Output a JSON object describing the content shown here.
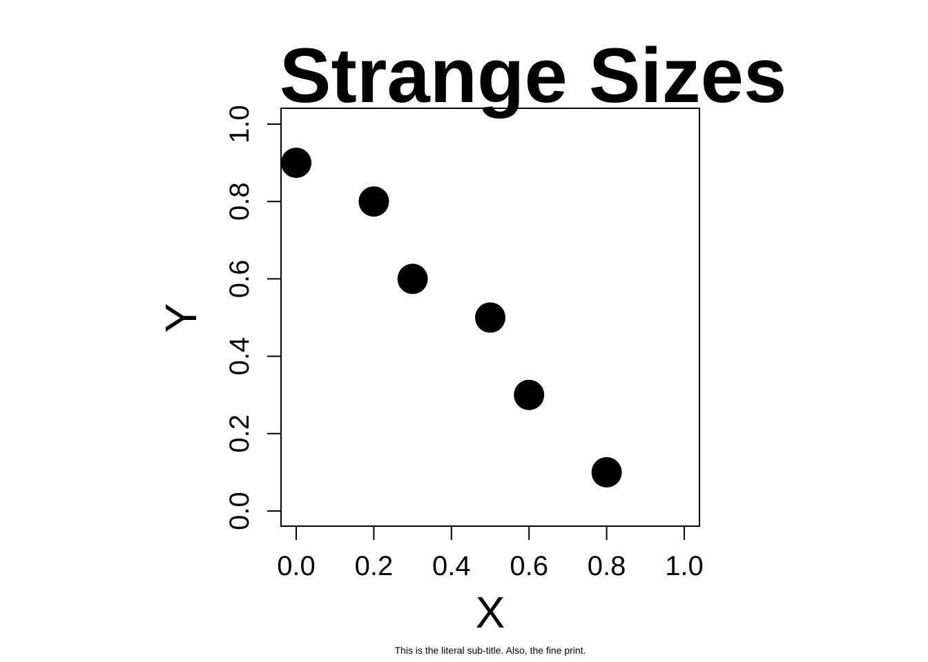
{
  "chart_data": {
    "type": "scatter",
    "title": "Strange Sizes",
    "subtitle": "This is the literal sub-title. Also, the fine print.",
    "xlabel": "X",
    "ylabel": "Y",
    "xlim": [
      0,
      1
    ],
    "ylim": [
      0,
      1
    ],
    "x_ticks": [
      "0.0",
      "0.2",
      "0.4",
      "0.6",
      "0.8",
      "1.0"
    ],
    "y_ticks": [
      "0.0",
      "0.2",
      "0.4",
      "0.6",
      "0.8",
      "1.0"
    ],
    "points": [
      {
        "x": 0.0,
        "y": 0.9
      },
      {
        "x": 0.2,
        "y": 0.8
      },
      {
        "x": 0.3,
        "y": 0.6
      },
      {
        "x": 0.5,
        "y": 0.5
      },
      {
        "x": 0.6,
        "y": 0.3
      },
      {
        "x": 0.8,
        "y": 0.1
      }
    ],
    "grid": false,
    "point_color": "#000000"
  }
}
